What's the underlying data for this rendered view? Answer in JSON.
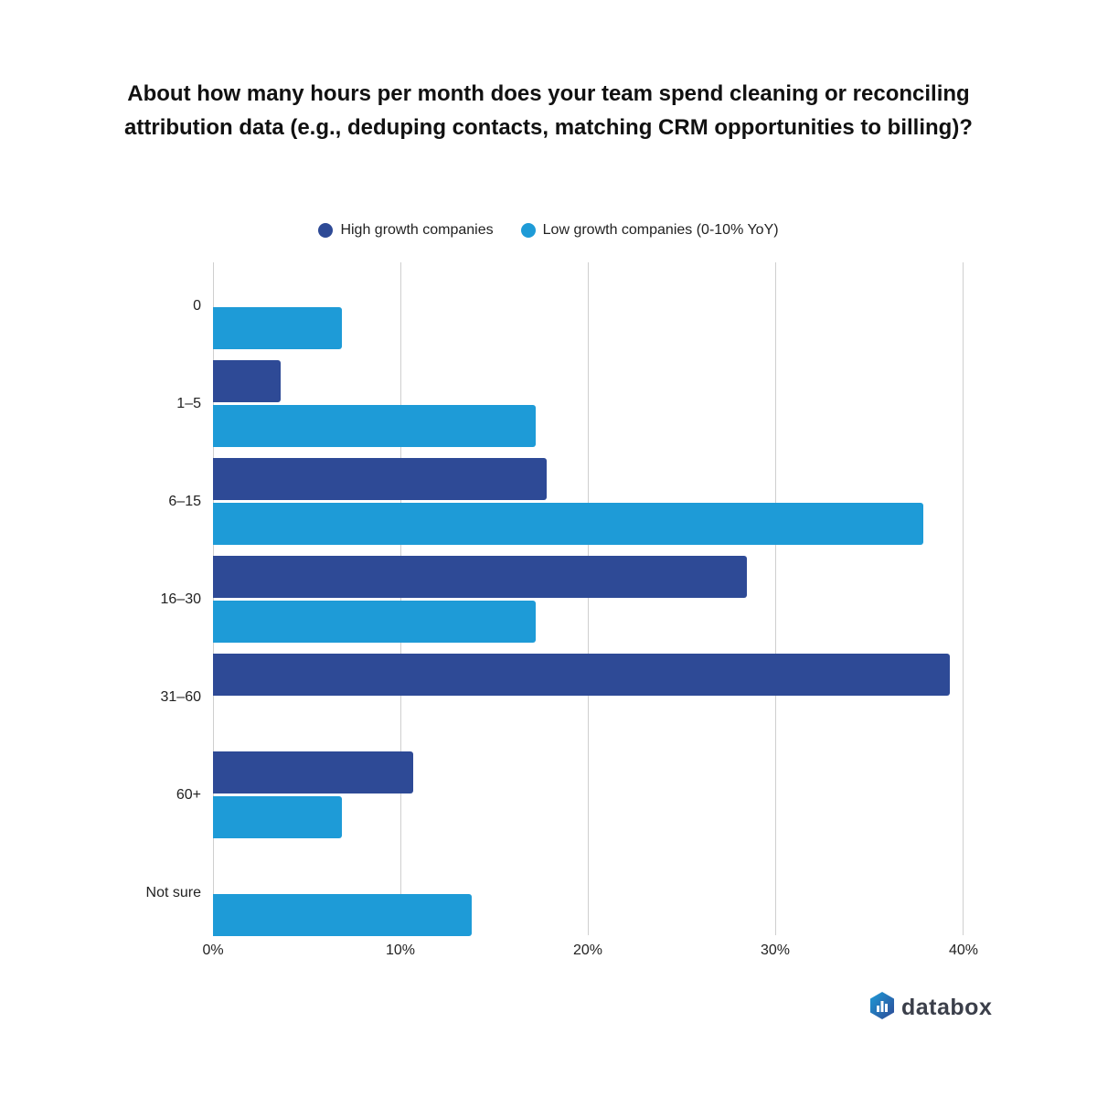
{
  "title": "About how many hours per month does your team spend cleaning or reconciling attribution data (e.g., deduping contacts, matching CRM opportunities to billing)?",
  "legend": [
    {
      "label": "High growth companies",
      "color": "#2e4a96"
    },
    {
      "label": "Low growth companies (0-10% YoY)",
      "color": "#1e9bd7"
    }
  ],
  "x_ticks": [
    "0%",
    "10%",
    "20%",
    "30%",
    "40%"
  ],
  "brand": {
    "name": "databox"
  },
  "chart_data": {
    "type": "bar",
    "orientation": "horizontal",
    "title": "About how many hours per month does your team spend cleaning or reconciling attribution data (e.g., deduping contacts, matching CRM opportunities to billing)?",
    "categories": [
      "0",
      "1–5",
      "6–15",
      "16–30",
      "31–60",
      "60+",
      "Not sure"
    ],
    "series": [
      {
        "name": "High growth companies",
        "color": "#2e4a96",
        "values": [
          0,
          3.6,
          17.8,
          28.5,
          39.3,
          10.7,
          0
        ]
      },
      {
        "name": "Low growth companies (0-10% YoY)",
        "color": "#1e9bd7",
        "values": [
          6.9,
          17.2,
          37.9,
          17.2,
          0,
          6.9,
          13.8
        ]
      }
    ],
    "xlabel": "",
    "ylabel": "",
    "xlim": [
      0,
      40
    ],
    "x_tick_labels": [
      "0%",
      "10%",
      "20%",
      "30%",
      "40%"
    ],
    "grid": true,
    "legend_position": "top"
  }
}
